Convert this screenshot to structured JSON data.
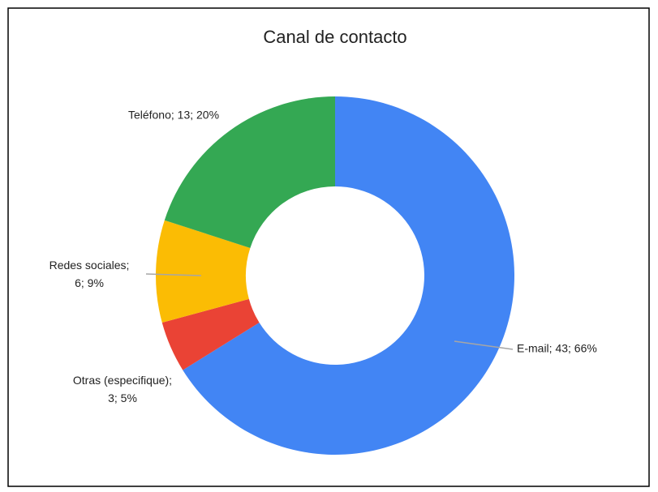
{
  "chart_data": {
    "type": "donut",
    "title": "Canal de contacto",
    "values": [
      43,
      3,
      6,
      13
    ],
    "value_labels": [
      "E-mail; 43; 66%",
      "Otras (especifique);\n3; 5%",
      "Redes sociales;\n6; 9%",
      "Teléfono; 13; 20%"
    ],
    "colors": [
      "#4285f4",
      "#ea4335",
      "#fbbc04",
      "#34a853"
    ]
  }
}
